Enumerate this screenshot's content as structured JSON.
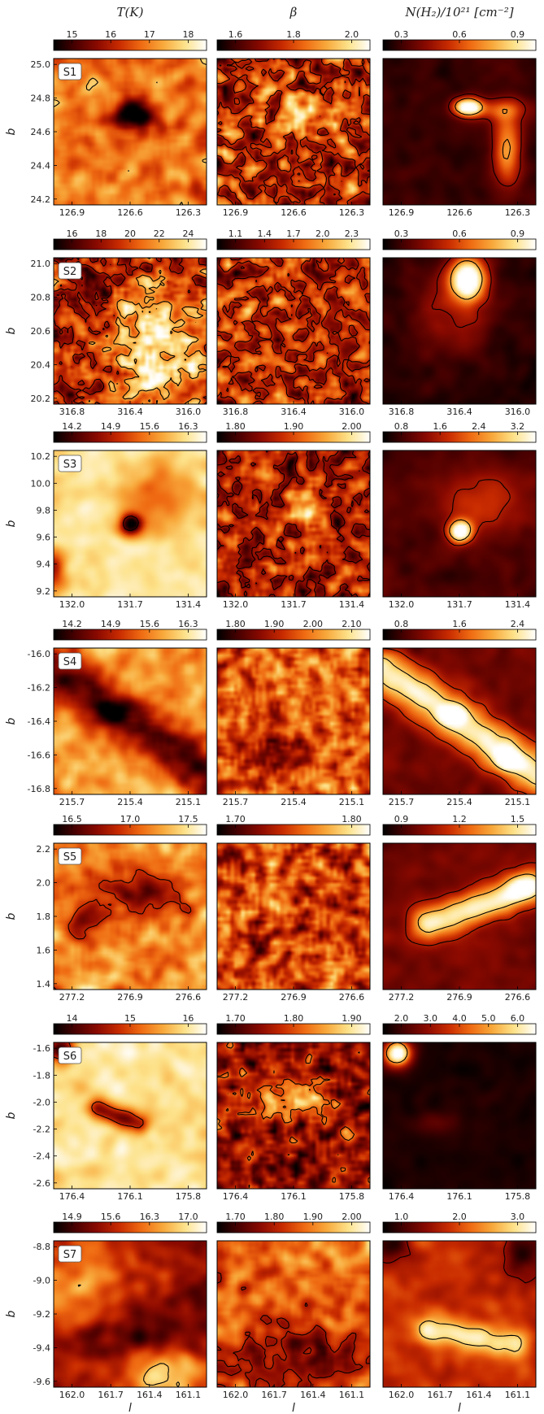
{
  "column_titles": [
    "T(K)",
    "β",
    "N(H₂)/10²¹ [cm⁻²]"
  ],
  "colors": {
    "ramp": [
      "#000000",
      "#4a0000",
      "#8b0a00",
      "#c82b00",
      "#ef6a12",
      "#f8a83a",
      "#fde28a",
      "#ffffff"
    ],
    "contour": "#000000"
  },
  "chart_data": [
    {
      "type": "heatmap",
      "label": "S1",
      "ylabel": "b",
      "y_ticks": [
        "25.0",
        "24.8",
        "24.6",
        "24.4",
        "24.2"
      ],
      "panels": [
        {
          "quantity": "T(K)",
          "colorbar_ticks": [
            "15",
            "16",
            "17",
            "18"
          ],
          "x_ticks": [
            "126.9",
            "126.6",
            "126.3"
          ]
        },
        {
          "quantity": "β",
          "colorbar_ticks": [
            "1.6",
            "1.8",
            "2.0"
          ],
          "x_ticks": [
            "126.9",
            "126.6",
            "126.3"
          ]
        },
        {
          "quantity": "N(H₂)/10²¹ [cm⁻²]",
          "colorbar_ticks": [
            "0.3",
            "0.6",
            "0.9"
          ],
          "x_ticks": [
            "126.9",
            "126.6",
            "126.3"
          ]
        }
      ]
    },
    {
      "type": "heatmap",
      "label": "S2",
      "ylabel": "b",
      "y_ticks": [
        "21.0",
        "20.8",
        "20.6",
        "20.4",
        "20.2"
      ],
      "panels": [
        {
          "quantity": "T(K)",
          "colorbar_ticks": [
            "16",
            "18",
            "20",
            "22",
            "24"
          ],
          "x_ticks": [
            "316.8",
            "316.4",
            "316.0"
          ]
        },
        {
          "quantity": "β",
          "colorbar_ticks": [
            "1.1",
            "1.4",
            "1.7",
            "2.0",
            "2.3"
          ],
          "x_ticks": [
            "316.8",
            "316.4",
            "316.0"
          ]
        },
        {
          "quantity": "N(H₂)/10²¹ [cm⁻²]",
          "colorbar_ticks": [
            "0.3",
            "0.6",
            "0.9"
          ],
          "x_ticks": [
            "316.8",
            "316.4",
            "316.0"
          ]
        }
      ]
    },
    {
      "type": "heatmap",
      "label": "S3",
      "ylabel": "b",
      "y_ticks": [
        "10.2",
        "10.0",
        "9.8",
        "9.6",
        "9.4",
        "9.2"
      ],
      "panels": [
        {
          "quantity": "T(K)",
          "colorbar_ticks": [
            "14.2",
            "14.9",
            "15.6",
            "16.3"
          ],
          "x_ticks": [
            "132.0",
            "131.7",
            "131.4"
          ]
        },
        {
          "quantity": "β",
          "colorbar_ticks": [
            "1.80",
            "1.90",
            "2.00"
          ],
          "x_ticks": [
            "132.0",
            "131.7",
            "131.4"
          ]
        },
        {
          "quantity": "N(H₂)/10²¹ [cm⁻²]",
          "colorbar_ticks": [
            "0.8",
            "1.6",
            "2.4",
            "3.2"
          ],
          "x_ticks": [
            "132.0",
            "131.7",
            "131.4"
          ]
        }
      ]
    },
    {
      "type": "heatmap",
      "label": "S4",
      "ylabel": "b",
      "y_ticks": [
        "-16.0",
        "-16.2",
        "-16.4",
        "-16.6",
        "-16.8"
      ],
      "panels": [
        {
          "quantity": "T(K)",
          "colorbar_ticks": [
            "14.2",
            "14.9",
            "15.6",
            "16.3"
          ],
          "x_ticks": [
            "215.7",
            "215.4",
            "215.1"
          ]
        },
        {
          "quantity": "β",
          "colorbar_ticks": [
            "1.80",
            "1.90",
            "2.00",
            "2.10"
          ],
          "x_ticks": [
            "215.7",
            "215.4",
            "215.1"
          ]
        },
        {
          "quantity": "N(H₂)/10²¹ [cm⁻²]",
          "colorbar_ticks": [
            "0.8",
            "1.6",
            "2.4"
          ],
          "x_ticks": [
            "215.7",
            "215.4",
            "215.1"
          ]
        }
      ]
    },
    {
      "type": "heatmap",
      "label": "S5",
      "ylabel": "b",
      "y_ticks": [
        "2.2",
        "2.0",
        "1.8",
        "1.6",
        "1.4"
      ],
      "panels": [
        {
          "quantity": "T(K)",
          "colorbar_ticks": [
            "16.5",
            "17.0",
            "17.5"
          ],
          "x_ticks": [
            "277.2",
            "276.9",
            "276.6"
          ]
        },
        {
          "quantity": "β",
          "colorbar_ticks": [
            "1.70",
            "1.80"
          ],
          "x_ticks": [
            "277.2",
            "276.9",
            "276.6"
          ]
        },
        {
          "quantity": "N(H₂)/10²¹ [cm⁻²]",
          "colorbar_ticks": [
            "0.9",
            "1.2",
            "1.5"
          ],
          "x_ticks": [
            "277.2",
            "276.9",
            "276.6"
          ]
        }
      ]
    },
    {
      "type": "heatmap",
      "label": "S6",
      "ylabel": "b",
      "y_ticks": [
        "-1.6",
        "-1.8",
        "-2.0",
        "-2.2",
        "-2.4",
        "-2.6"
      ],
      "panels": [
        {
          "quantity": "T(K)",
          "colorbar_ticks": [
            "14",
            "15",
            "16"
          ],
          "x_ticks": [
            "176.4",
            "176.1",
            "175.8"
          ]
        },
        {
          "quantity": "β",
          "colorbar_ticks": [
            "1.70",
            "1.80",
            "1.90"
          ],
          "x_ticks": [
            "176.4",
            "176.1",
            "175.8"
          ]
        },
        {
          "quantity": "N(H₂)/10²¹ [cm⁻²]",
          "colorbar_ticks": [
            "2.0",
            "3.0",
            "4.0",
            "5.0",
            "6.0"
          ],
          "x_ticks": [
            "176.4",
            "176.1",
            "175.8"
          ]
        }
      ]
    },
    {
      "type": "heatmap",
      "label": "S7",
      "ylabel": "b",
      "xlabel": "l",
      "y_ticks": [
        "-8.8",
        "-9.0",
        "-9.2",
        "-9.4",
        "-9.6"
      ],
      "panels": [
        {
          "quantity": "T(K)",
          "colorbar_ticks": [
            "14.9",
            "15.6",
            "16.3",
            "17.0"
          ],
          "x_ticks": [
            "162.0",
            "161.7",
            "161.4",
            "161.1"
          ]
        },
        {
          "quantity": "β",
          "colorbar_ticks": [
            "1.70",
            "1.80",
            "1.90",
            "2.00"
          ],
          "x_ticks": [
            "162.0",
            "161.7",
            "161.4",
            "161.1"
          ]
        },
        {
          "quantity": "N(H₂)/10²¹ [cm⁻²]",
          "colorbar_ticks": [
            "1.0",
            "2.0",
            "3.0"
          ],
          "x_ticks": [
            "162.0",
            "161.7",
            "161.4",
            "161.1"
          ]
        }
      ]
    }
  ]
}
